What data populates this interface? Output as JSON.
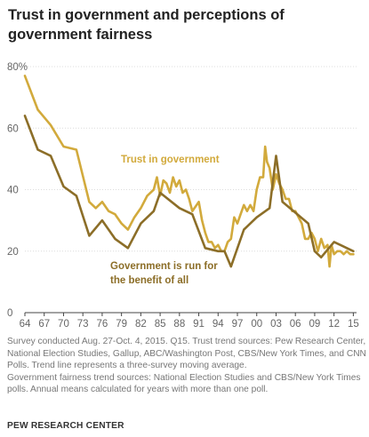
{
  "title": "Trust in government and perceptions of government fairness",
  "notes": {
    "line1": "Survey conducted Aug. 27-Oct. 4, 2015. Q15. Trust trend sources: Pew Research Center, National Election Studies, Gallup, ABC/Washington Post, CBS/New York Times, and CNN Polls. Trend line represents a three-survey moving average.",
    "line2": "Government fairness trend sources: National Election Studies and CBS/New York Times polls. Annual means calculated for years with more than one poll."
  },
  "source_org": "PEW RESEARCH CENTER",
  "colors": {
    "trust": "#d2aa3c",
    "fairness": "#8c6e28",
    "grid": "#dcdcdc",
    "axis": "#444444"
  },
  "chart_data": {
    "type": "line",
    "xlabel": "",
    "ylabel": "",
    "xlim": [
      1964,
      2015.5
    ],
    "ylim": [
      0,
      80
    ],
    "y_ticks": [
      0,
      20,
      40,
      60,
      80
    ],
    "y_tick_labels": [
      "0",
      "20",
      "40",
      "60",
      "80%"
    ],
    "x_ticks": [
      1964,
      1967,
      1970,
      1973,
      1976,
      1979,
      1982,
      1985,
      1988,
      1991,
      1994,
      1997,
      2000,
      2003,
      2006,
      2009,
      2012,
      2015
    ],
    "x_tick_labels": [
      "64",
      "67",
      "70",
      "73",
      "76",
      "79",
      "82",
      "85",
      "88",
      "91",
      "94",
      "97",
      "00",
      "03",
      "06",
      "09",
      "12",
      "15"
    ],
    "grid": "horizontal",
    "series": [
      {
        "name": "Trust in government",
        "x": [
          1964,
          1966,
          1968,
          1970,
          1972,
          1974,
          1975,
          1976,
          1977,
          1978,
          1979,
          1980,
          1981,
          1982,
          1983,
          1984,
          1984.5,
          1985,
          1985.5,
          1986,
          1986.5,
          1987,
          1987.5,
          1988,
          1988.5,
          1989,
          1989.5,
          1990,
          1991,
          1991.5,
          1992,
          1992.5,
          1993,
          1993.5,
          1994,
          1994.5,
          1995,
          1995.5,
          1996,
          1996.5,
          1997,
          1997.5,
          1998,
          1998.5,
          1999,
          1999.5,
          2000,
          2000.5,
          2001,
          2001.3,
          2001.6,
          2002,
          2002.5,
          2003,
          2003.5,
          2004,
          2004.5,
          2005,
          2005.5,
          2006,
          2007,
          2007.5,
          2008,
          2008.5,
          2009,
          2009.5,
          2010,
          2010.5,
          2011,
          2011.3,
          2011.6,
          2012,
          2012.5,
          2013,
          2013.5,
          2014,
          2014.5,
          2015
        ],
        "values": [
          77,
          66,
          61,
          54,
          53,
          36,
          34,
          36,
          33,
          32,
          29,
          27,
          31,
          34,
          38,
          40,
          44,
          38,
          43,
          42,
          39,
          44,
          41,
          43,
          39,
          40,
          37,
          33,
          36,
          30,
          26,
          23,
          23,
          21,
          22,
          20,
          20,
          23,
          24,
          31,
          29,
          32,
          35,
          33,
          35,
          33,
          40,
          44,
          44,
          54,
          49,
          47,
          40,
          45,
          42,
          40,
          37,
          37,
          33,
          33,
          29,
          24,
          24,
          26,
          24,
          20,
          24,
          21,
          22,
          15,
          22,
          19,
          20,
          20,
          19,
          20,
          19,
          19
        ]
      },
      {
        "name": "Government is run for the benefit of all",
        "x": [
          1964,
          1966,
          1968,
          1970,
          1972,
          1974,
          1976,
          1978,
          1980,
          1982,
          1984,
          1985,
          1988,
          1990,
          1992,
          1994,
          1995,
          1996,
          1998,
          2000,
          2002,
          2003,
          2004,
          2008,
          2009,
          2010,
          2012,
          2015
        ],
        "values": [
          64,
          53,
          51,
          41,
          38,
          25,
          30,
          24,
          21,
          29,
          33,
          39,
          34,
          32,
          21,
          20,
          20,
          15,
          27,
          31,
          34,
          51,
          36,
          29,
          20,
          18,
          23,
          20
        ]
      }
    ],
    "annotations": [
      {
        "text": "Trust in government",
        "series": "Trust in government"
      },
      {
        "text_line1": "Government is run for",
        "text_line2": "the benefit of all",
        "series": "Government is run for the benefit of all"
      }
    ]
  }
}
